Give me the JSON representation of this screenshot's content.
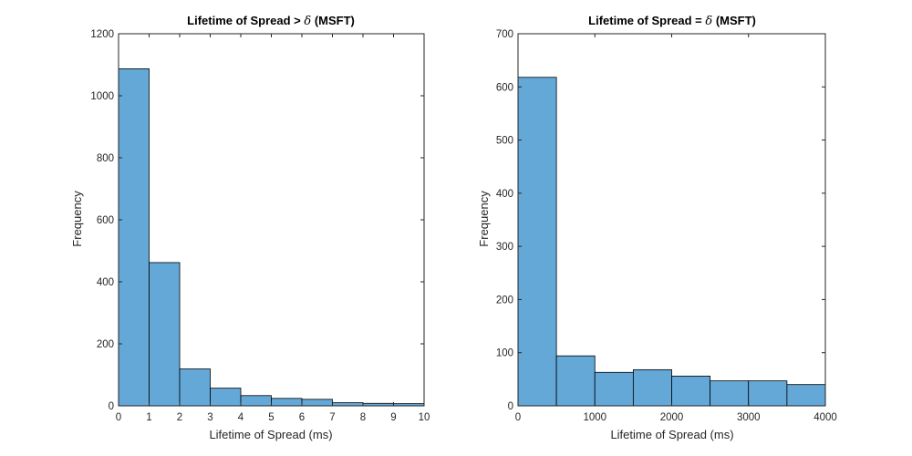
{
  "chart_data": [
    {
      "type": "bar",
      "title_main": "Lifetime of Spread > ",
      "title_symbol": "δ",
      "title_suffix": " (MSFT)",
      "xlabel": "Lifetime of Spread (ms)",
      "ylabel": "Frequency",
      "bin_edges": [
        0,
        1,
        2,
        3,
        4,
        5,
        6,
        7,
        8,
        9,
        10
      ],
      "values": [
        1087,
        462,
        119,
        57,
        33,
        24,
        21,
        10,
        8,
        7
      ],
      "xlim": [
        0,
        10
      ],
      "ylim": [
        0,
        1200
      ],
      "xticks": [
        0,
        1,
        2,
        3,
        4,
        5,
        6,
        7,
        8,
        9,
        10
      ],
      "yticks": [
        0,
        200,
        400,
        600,
        800,
        1000,
        1200
      ],
      "bar_color": "#64a8d8"
    },
    {
      "type": "bar",
      "title_main": "Lifetime of Spread = ",
      "title_symbol": "δ",
      "title_suffix": " (MSFT)",
      "xlabel": "Lifetime of Spread (ms)",
      "ylabel": "Frequency",
      "bin_edges": [
        0,
        500,
        1000,
        1500,
        2000,
        2500,
        3000,
        3500,
        4000
      ],
      "values": [
        618,
        94,
        63,
        68,
        56,
        47,
        47,
        40
      ],
      "xlim": [
        0,
        4000
      ],
      "ylim": [
        0,
        700
      ],
      "xticks": [
        0,
        1000,
        2000,
        3000,
        4000
      ],
      "yticks": [
        0,
        100,
        200,
        300,
        400,
        500,
        600,
        700
      ],
      "bar_color": "#64a8d8"
    }
  ]
}
